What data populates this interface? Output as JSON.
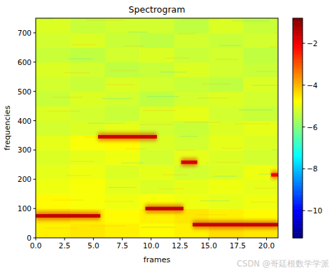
{
  "chart_data": {
    "type": "heatmap",
    "title": "Spectrogram",
    "x_label": "frames",
    "y_label": "frequencies",
    "watermark": "CSDN @哥廷根数学学派",
    "xlim": [
      0,
      21
    ],
    "ylim": [
      0,
      750
    ],
    "xticks": [
      {
        "value": 0,
        "label": "0.0"
      },
      {
        "value": 2.5,
        "label": "2.5"
      },
      {
        "value": 5,
        "label": "5.0"
      },
      {
        "value": 7.5,
        "label": "7.5"
      },
      {
        "value": 10,
        "label": "10.0"
      },
      {
        "value": 12.5,
        "label": "12.5"
      },
      {
        "value": 15,
        "label": "15.0"
      },
      {
        "value": 17.5,
        "label": "17.5"
      },
      {
        "value": 20,
        "label": "20.0"
      }
    ],
    "yticks": [
      0,
      100,
      200,
      300,
      400,
      500,
      600,
      700
    ],
    "color_scale": "jet",
    "clim": [
      -11.3,
      -0.8
    ],
    "cticks": [
      {
        "value": -2,
        "label": "−2"
      },
      {
        "value": -4,
        "label": "−4"
      },
      {
        "value": -6,
        "label": "−6"
      },
      {
        "value": -8,
        "label": "−8"
      },
      {
        "value": -10,
        "label": "−10"
      }
    ],
    "background": {
      "x_edges": [
        0,
        3,
        6,
        9,
        12,
        15,
        18,
        21
      ],
      "y_edges": [
        0,
        50,
        100,
        150,
        200,
        250,
        300,
        350,
        400,
        450,
        500,
        550,
        600,
        650,
        700,
        750
      ],
      "values": [
        [
          -4.6,
          -4.5,
          -4.6,
          -4.7,
          -4.6,
          -4.4,
          -4.5
        ],
        [
          -4.5,
          -4.6,
          -4.7,
          -4.6,
          -4.5,
          -4.6,
          -4.7
        ],
        [
          -4.7,
          -4.8,
          -4.9,
          -4.8,
          -4.9,
          -5.0,
          -4.9
        ],
        [
          -4.9,
          -4.8,
          -5.0,
          -5.1,
          -5.0,
          -4.9,
          -5.0
        ],
        [
          -5.0,
          -4.9,
          -5.1,
          -5.0,
          -5.2,
          -5.1,
          -4.9
        ],
        [
          -5.1,
          -5.0,
          -4.9,
          -5.2,
          -5.0,
          -5.1,
          -5.2
        ],
        [
          -5.0,
          -4.8,
          -4.7,
          -5.1,
          -5.2,
          -5.0,
          -5.1
        ],
        [
          -5.2,
          -5.1,
          -5.0,
          -5.2,
          -5.3,
          -5.1,
          -5.0
        ],
        [
          -5.1,
          -5.2,
          -5.3,
          -5.1,
          -5.0,
          -5.2,
          -5.3
        ],
        [
          -5.3,
          -5.1,
          -5.2,
          -5.4,
          -5.2,
          -5.1,
          -5.2
        ],
        [
          -5.2,
          -5.3,
          -5.1,
          -5.2,
          -5.3,
          -5.4,
          -5.1
        ],
        [
          -5.1,
          -5.2,
          -5.4,
          -5.3,
          -5.1,
          -5.2,
          -5.3
        ],
        [
          -5.3,
          -5.4,
          -5.2,
          -5.1,
          -5.3,
          -5.2,
          -5.4
        ],
        [
          -5.2,
          -5.1,
          -5.3,
          -5.4,
          -5.2,
          -5.3,
          -5.2
        ],
        [
          -5.1,
          -5.3,
          -5.2,
          -5.2,
          -5.4,
          -5.1,
          -5.3
        ]
      ]
    },
    "tones": [
      {
        "x0": 0,
        "x1": 5.6,
        "frequency": 75,
        "level": -1.5
      },
      {
        "x0": 5.4,
        "x1": 10.5,
        "frequency": 345,
        "level": -1.6
      },
      {
        "x0": 9.5,
        "x1": 12.8,
        "frequency": 100,
        "level": -1.5
      },
      {
        "x0": 12.6,
        "x1": 14.0,
        "frequency": 258,
        "level": -1.7
      },
      {
        "x0": 13.6,
        "x1": 21,
        "frequency": 45,
        "level": -1.5
      },
      {
        "x0": 20.4,
        "x1": 21,
        "frequency": 215,
        "level": -2.0
      }
    ]
  }
}
